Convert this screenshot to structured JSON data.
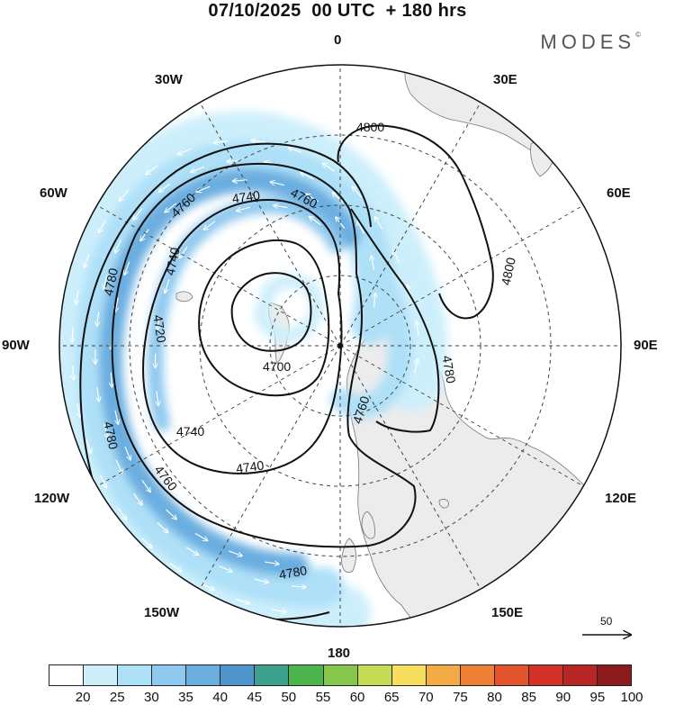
{
  "title": "07/10/2025  00 UTC  + 180 hrs",
  "brand": "MODES",
  "brand_mark": "©",
  "longitude_labels": [
    "0",
    "30E",
    "60E",
    "90E",
    "120E",
    "150E",
    "180",
    "150W",
    "120W",
    "90W",
    "60W",
    "30W"
  ],
  "contour_labels": [
    "4800",
    "4800",
    "4760",
    "4760",
    "4740",
    "4740",
    "4740",
    "4720",
    "4780",
    "4700",
    "4780",
    "4760",
    "4780",
    "4740",
    "4760",
    "4780"
  ],
  "wind_reference": {
    "label": "50",
    "icon": "arrow-right-icon"
  },
  "legend": {
    "ticks": [
      "20",
      "25",
      "30",
      "35",
      "40",
      "45",
      "50",
      "55",
      "60",
      "65",
      "70",
      "75",
      "80",
      "85",
      "90",
      "95",
      "100"
    ],
    "colors": [
      "#ffffff",
      "#cdeffc",
      "#aee0f8",
      "#8fc9ef",
      "#6aaee0",
      "#4d95cc",
      "#3da08c",
      "#4cb54c",
      "#86c64a",
      "#c5dc52",
      "#f7de5c",
      "#f4ab44",
      "#ee7f35",
      "#e4542c",
      "#d43228",
      "#b72525",
      "#8e1b1b"
    ]
  },
  "map_colors": {
    "land": "#ececec",
    "coast": "#777777",
    "grid": "#444444",
    "contour": "#111111"
  },
  "chart_data": {
    "type": "polar-map",
    "title": "07/10/2025  00 UTC  + 180 hrs",
    "projection": "south polar stereographic",
    "variable": "geopotential height contours (m) with wind speed shading",
    "contour_levels": [
      4700,
      4720,
      4740,
      4760,
      4780,
      4800
    ],
    "wind_speed_bins": [
      20,
      25,
      30,
      35,
      40,
      45,
      50,
      55,
      60,
      65,
      70,
      75,
      80,
      85,
      90,
      95,
      100
    ],
    "reference_vector": 50
  }
}
